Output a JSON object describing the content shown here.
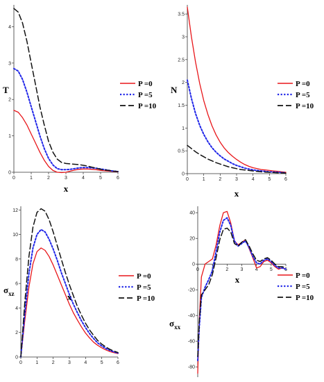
{
  "legend_labels": [
    "P =0",
    "P =5",
    "P =10"
  ],
  "colors": {
    "p0": "#e8161a",
    "p5": "#1f25e8",
    "p10": "#111111"
  },
  "chart_data": [
    {
      "type": "line",
      "xlabel": "x",
      "ylabel": "T",
      "ylabel_sub": "",
      "xlim": [
        0,
        6
      ],
      "ylim": [
        0,
        4.6
      ],
      "xticks": [
        0,
        1,
        2,
        3,
        4,
        5,
        6
      ],
      "yticks": [
        0,
        1,
        2,
        3,
        4
      ],
      "grid": false,
      "legend_position": "center-right",
      "series": [
        {
          "name": "P =0",
          "x": [
            0,
            0.25,
            0.5,
            0.75,
            1,
            1.25,
            1.5,
            1.75,
            2,
            2.25,
            2.5,
            2.75,
            3,
            3.25,
            3.5,
            3.75,
            4,
            4.25,
            4.5,
            4.75,
            5,
            5.25,
            5.5,
            5.75,
            6
          ],
          "y": [
            1.7,
            1.65,
            1.5,
            1.3,
            1.05,
            0.8,
            0.55,
            0.33,
            0.16,
            0.05,
            0.0,
            -0.01,
            0.0,
            0.03,
            0.06,
            0.08,
            0.09,
            0.09,
            0.08,
            0.07,
            0.05,
            0.04,
            0.03,
            0.02,
            0.01
          ]
        },
        {
          "name": "P =5",
          "x": [
            0,
            0.25,
            0.5,
            0.75,
            1,
            1.25,
            1.5,
            1.75,
            2,
            2.25,
            2.5,
            2.75,
            3,
            3.25,
            3.5,
            3.75,
            4,
            4.25,
            4.5,
            4.75,
            5,
            5.25,
            5.5,
            5.75,
            6
          ],
          "y": [
            2.85,
            2.78,
            2.55,
            2.2,
            1.8,
            1.4,
            1.0,
            0.65,
            0.38,
            0.2,
            0.1,
            0.07,
            0.07,
            0.08,
            0.1,
            0.12,
            0.13,
            0.13,
            0.12,
            0.11,
            0.09,
            0.07,
            0.05,
            0.03,
            0.02
          ]
        },
        {
          "name": "P =10",
          "x": [
            0,
            0.25,
            0.5,
            0.75,
            1,
            1.25,
            1.5,
            1.75,
            2,
            2.25,
            2.5,
            2.75,
            3,
            3.25,
            3.5,
            3.75,
            4,
            4.25,
            4.5,
            4.75,
            5,
            5.25,
            5.5,
            5.75,
            6
          ],
          "y": [
            4.5,
            4.4,
            4.1,
            3.6,
            3.0,
            2.4,
            1.8,
            1.3,
            0.85,
            0.55,
            0.36,
            0.27,
            0.24,
            0.23,
            0.22,
            0.21,
            0.19,
            0.17,
            0.14,
            0.11,
            0.08,
            0.06,
            0.05,
            0.03,
            0.02
          ]
        }
      ]
    },
    {
      "type": "line",
      "xlabel": "x",
      "ylabel": "N",
      "ylabel_sub": "",
      "xlim": [
        0,
        6
      ],
      "ylim": [
        0,
        3.7
      ],
      "xticks": [
        0,
        1,
        2,
        3,
        4,
        5,
        6
      ],
      "yticks": [
        0,
        0.5,
        1,
        1.5,
        2,
        2.5,
        3,
        3.5
      ],
      "grid": false,
      "legend_position": "center-right",
      "series": [
        {
          "name": "P =0",
          "x": [
            0,
            0.25,
            0.5,
            0.75,
            1,
            1.25,
            1.5,
            1.75,
            2,
            2.25,
            2.5,
            2.75,
            3,
            3.25,
            3.5,
            3.75,
            4,
            4.25,
            4.5,
            4.75,
            5,
            5.25,
            5.5,
            5.75,
            6
          ],
          "y": [
            3.65,
            3.0,
            2.45,
            1.98,
            1.6,
            1.3,
            1.05,
            0.85,
            0.69,
            0.56,
            0.46,
            0.38,
            0.31,
            0.25,
            0.2,
            0.16,
            0.13,
            0.11,
            0.09,
            0.08,
            0.07,
            0.06,
            0.05,
            0.04,
            0.03
          ]
        },
        {
          "name": "P =5",
          "x": [
            0,
            0.25,
            0.5,
            0.75,
            1,
            1.25,
            1.5,
            1.75,
            2,
            2.25,
            2.5,
            2.75,
            3,
            3.25,
            3.5,
            3.75,
            4,
            4.25,
            4.5,
            4.75,
            5,
            5.25,
            5.5,
            5.75,
            6
          ],
          "y": [
            2.05,
            1.65,
            1.32,
            1.06,
            0.86,
            0.7,
            0.57,
            0.47,
            0.39,
            0.32,
            0.27,
            0.22,
            0.18,
            0.15,
            0.12,
            0.1,
            0.08,
            0.07,
            0.06,
            0.05,
            0.04,
            0.035,
            0.03,
            0.025,
            0.02
          ]
        },
        {
          "name": "P =10",
          "x": [
            0,
            0.25,
            0.5,
            0.75,
            1,
            1.25,
            1.5,
            1.75,
            2,
            2.25,
            2.5,
            2.75,
            3,
            3.25,
            3.5,
            3.75,
            4,
            4.25,
            4.5,
            4.75,
            5,
            5.25,
            5.5,
            5.75,
            6
          ],
          "y": [
            0.62,
            0.55,
            0.48,
            0.42,
            0.37,
            0.32,
            0.28,
            0.24,
            0.21,
            0.18,
            0.15,
            0.13,
            0.11,
            0.09,
            0.08,
            0.07,
            0.06,
            0.05,
            0.04,
            0.035,
            0.03,
            0.025,
            0.02,
            0.015,
            0.01
          ]
        }
      ]
    },
    {
      "type": "line",
      "xlabel": "x",
      "ylabel": "σ",
      "ylabel_sub": "xz",
      "xlim": [
        0,
        6
      ],
      "ylim": [
        0,
        12.3
      ],
      "xticks": [
        0,
        1,
        2,
        3,
        4,
        5,
        6
      ],
      "yticks": [
        0,
        2,
        4,
        6,
        8,
        10,
        12
      ],
      "grid": false,
      "legend_position": "center-right",
      "series": [
        {
          "name": "P =0",
          "x": [
            0,
            0.25,
            0.5,
            0.75,
            1,
            1.25,
            1.5,
            1.75,
            2,
            2.25,
            2.5,
            2.75,
            3,
            3.25,
            3.5,
            3.75,
            4,
            4.25,
            4.5,
            4.75,
            5,
            5.25,
            5.5,
            5.75,
            6
          ],
          "y": [
            0,
            3.0,
            5.7,
            7.6,
            8.6,
            8.9,
            8.7,
            8.2,
            7.5,
            6.7,
            5.9,
            5.1,
            4.3,
            3.6,
            3.0,
            2.45,
            1.95,
            1.55,
            1.2,
            0.95,
            0.75,
            0.58,
            0.45,
            0.35,
            0.28
          ]
        },
        {
          "name": "P =5",
          "x": [
            0,
            0.25,
            0.5,
            0.75,
            1,
            1.25,
            1.5,
            1.75,
            2,
            2.25,
            2.5,
            2.75,
            3,
            3.25,
            3.5,
            3.75,
            4,
            4.25,
            4.5,
            4.75,
            5,
            5.25,
            5.5,
            5.75,
            6
          ],
          "y": [
            0,
            3.6,
            6.8,
            8.9,
            10.0,
            10.4,
            10.2,
            9.6,
            8.8,
            7.9,
            6.9,
            6.0,
            5.1,
            4.3,
            3.6,
            2.95,
            2.4,
            1.9,
            1.5,
            1.15,
            0.9,
            0.7,
            0.55,
            0.42,
            0.32
          ]
        },
        {
          "name": "P =10",
          "x": [
            0,
            0.25,
            0.5,
            0.75,
            1,
            1.25,
            1.5,
            1.75,
            2,
            2.25,
            2.5,
            2.75,
            3,
            3.25,
            3.5,
            3.75,
            4,
            4.25,
            4.5,
            4.75,
            5,
            5.25,
            5.5,
            5.75,
            6
          ],
          "y": [
            0,
            4.5,
            8.2,
            10.6,
            11.8,
            12.1,
            11.9,
            11.2,
            10.2,
            9.1,
            8.0,
            6.9,
            5.9,
            5.0,
            4.1,
            3.4,
            2.75,
            2.2,
            1.75,
            1.35,
            1.05,
            0.82,
            0.63,
            0.48,
            0.36
          ]
        }
      ]
    },
    {
      "type": "line",
      "xlabel": "x",
      "ylabel": "σ",
      "ylabel_sub": "xx",
      "xlim": [
        0,
        6
      ],
      "ylim": [
        -88,
        45
      ],
      "xticks": [
        0,
        1,
        2,
        3,
        4,
        5,
        6
      ],
      "yticks": [
        -80,
        -60,
        -40,
        -20,
        0,
        20,
        40
      ],
      "grid": false,
      "legend_position": "bottom-right",
      "series": [
        {
          "name": "P =0",
          "x": [
            0,
            0.1,
            0.25,
            0.5,
            0.75,
            1,
            1.25,
            1.5,
            1.75,
            2,
            2.25,
            2.5,
            2.75,
            3,
            3.25,
            3.5,
            3.75,
            4,
            4.25,
            4.5,
            4.75,
            5,
            5.25,
            5.5,
            5.75,
            6
          ],
          "y": [
            -85,
            -45,
            -10,
            0,
            2,
            4,
            15,
            30,
            40,
            41,
            32,
            18,
            15,
            17,
            19,
            12,
            5,
            -3,
            -2,
            2,
            3,
            1,
            -2,
            -4,
            -3,
            -4
          ]
        },
        {
          "name": "P =5",
          "x": [
            0,
            0.1,
            0.25,
            0.5,
            0.75,
            1,
            1.25,
            1.5,
            1.75,
            2,
            2.25,
            2.5,
            2.75,
            3,
            3.25,
            3.5,
            3.75,
            4,
            4.25,
            4.5,
            4.75,
            5,
            5.25,
            5.5,
            5.75,
            6
          ],
          "y": [
            -75,
            -50,
            -26,
            -18,
            -12,
            -5,
            10,
            25,
            34,
            36,
            30,
            18,
            14,
            16,
            18,
            13,
            6,
            1,
            0,
            3,
            4,
            2,
            -1,
            -3,
            -3,
            -4
          ]
        },
        {
          "name": "P =10",
          "x": [
            0,
            0.1,
            0.25,
            0.5,
            0.75,
            1,
            1.25,
            1.5,
            1.75,
            2,
            2.25,
            2.5,
            2.75,
            3,
            3.25,
            3.5,
            3.75,
            4,
            4.25,
            4.5,
            4.75,
            5,
            5.25,
            5.5,
            5.75,
            6
          ],
          "y": [
            -72,
            -45,
            -24,
            -20,
            -16,
            -8,
            5,
            19,
            27,
            28,
            25,
            16,
            14,
            17,
            19,
            14,
            8,
            3,
            2,
            4,
            5,
            3,
            0,
            -2,
            -2,
            -3
          ]
        }
      ]
    }
  ]
}
